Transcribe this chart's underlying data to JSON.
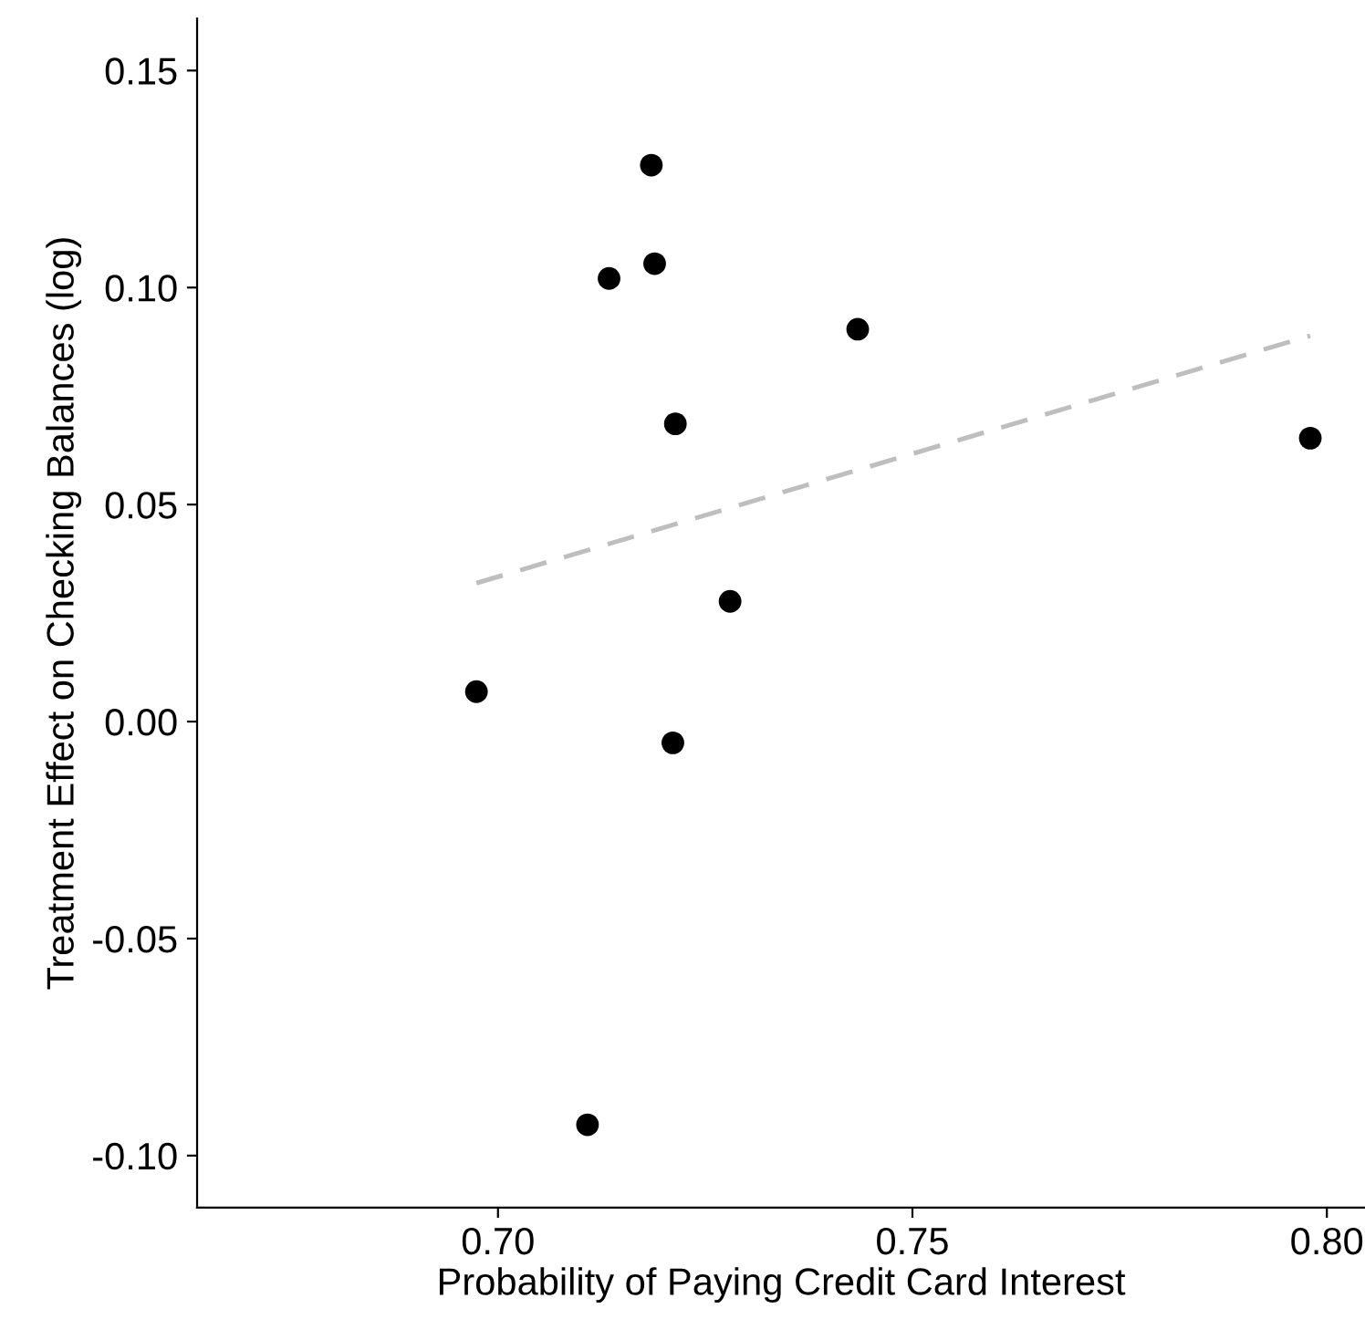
{
  "chart_data": {
    "type": "scatter",
    "xlabel": "Probability of Paying Credit Card Interest",
    "ylabel": "Treatment Effect on Checking Balances (log)",
    "xlim": [
      0.6637,
      0.8046
    ],
    "ylim": [
      -0.112,
      0.162
    ],
    "xticks": [
      {
        "value": 0.7,
        "label": "0.70"
      },
      {
        "value": 0.75,
        "label": "0.75"
      },
      {
        "value": 0.8,
        "label": "0.80"
      }
    ],
    "yticks": [
      {
        "value": -0.1,
        "label": "-0.10"
      },
      {
        "value": -0.05,
        "label": "-0.05"
      },
      {
        "value": 0,
        "label": "0.00"
      },
      {
        "value": 0.05,
        "label": "0.05"
      },
      {
        "value": 0.1,
        "label": "0.10"
      },
      {
        "value": 0.15,
        "label": "0.15"
      }
    ],
    "grid": false,
    "marker": "circle",
    "series": [
      {
        "color": "#000000",
        "x": [
          0.6974,
          0.7108,
          0.7134,
          0.7185,
          0.7189,
          0.7214,
          0.7211,
          0.728,
          0.7434,
          0.798
        ],
        "values": [
          0.0069,
          -0.0929,
          0.1021,
          0.1282,
          0.1055,
          0.0686,
          -0.0049,
          0.0277,
          0.0904,
          0.0653
        ]
      },
      {
        "type": "line",
        "color": "#bebebe",
        "line_style": "dashed",
        "marker": "none",
        "x": [
          0.6974,
          0.798
        ],
        "values": [
          0.0319,
          0.0889
        ]
      }
    ]
  }
}
